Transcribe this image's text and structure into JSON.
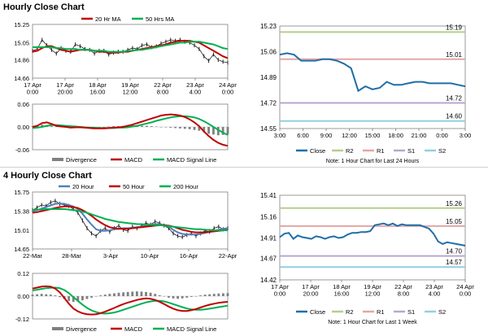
{
  "sections": [
    {
      "title": "Hourly Close Chart"
    },
    {
      "title": "4 Hourly Close Chart"
    }
  ],
  "colors": {
    "ma_short": "#c00000",
    "ma_mid": "#00b050",
    "ma_long": "#00b050",
    "ma_20h_4h": "#4f81bd",
    "price_dark": "#1f1f1f",
    "close": "#1f6ea8",
    "r2": "#b5cf8a",
    "r1": "#e3a6a6",
    "s1": "#b9a6cf",
    "s2": "#8fd0e0",
    "divergence": "#808080",
    "macd": "#c00000",
    "signal": "#00b050"
  },
  "chart_data": [
    {
      "id": "hourly-ma",
      "type": "line",
      "title": "",
      "ylim": [
        14.66,
        15.25
      ],
      "yticks": [
        "15.25",
        "15.05",
        "14.86",
        "14.66"
      ],
      "ytick_values": [
        15.25,
        15.05,
        14.86,
        14.66
      ],
      "xticks": [
        "17 Apr\n0:00",
        "17 Apr\n20:00",
        "18 Apr\n16:00",
        "19 Apr\n12:00",
        "22 Apr\n8:00",
        "23 Apr\n4:00",
        "24 Apr\n0:00"
      ],
      "legend": [
        "20 Hr MA",
        "50 Hrs MA"
      ],
      "price": [
        14.96,
        14.98,
        15.08,
        15.02,
        14.97,
        14.93,
        14.99,
        14.96,
        14.95,
        15.03,
        15.01,
        14.98,
        14.97,
        14.93,
        14.96,
        14.96,
        14.92,
        14.94,
        14.95,
        14.95,
        14.97,
        14.99,
        14.98,
        15.02,
        15.03,
        15.0,
        15.01,
        15.04,
        15.06,
        15.08,
        15.07,
        15.08,
        15.06,
        15.05,
        15.02,
        14.98,
        14.9,
        14.85,
        14.92,
        14.86,
        14.84,
        14.83
      ],
      "series": [
        {
          "name": "20 Hr MA",
          "values": [
            14.95,
            14.96,
            14.99,
            15.01,
            15.01,
            14.99,
            14.97,
            14.96,
            14.95,
            14.96,
            14.97,
            14.97,
            14.97,
            14.96,
            14.95,
            14.95,
            14.94,
            14.94,
            14.94,
            14.95,
            14.95,
            14.96,
            14.97,
            14.98,
            14.99,
            15.0,
            15.01,
            15.02,
            15.03,
            15.05,
            15.06,
            15.07,
            15.07,
            15.07,
            15.06,
            15.05,
            15.02,
            14.99,
            14.96,
            14.93,
            14.9,
            14.88
          ]
        },
        {
          "name": "50 Hrs MA",
          "values": [
            15.0,
            15.0,
            15.0,
            15.0,
            15.0,
            14.99,
            14.99,
            14.98,
            14.98,
            14.98,
            14.97,
            14.97,
            14.97,
            14.96,
            14.96,
            14.96,
            14.95,
            14.95,
            14.95,
            14.95,
            14.96,
            14.96,
            14.97,
            14.97,
            14.98,
            14.99,
            15.0,
            15.01,
            15.02,
            15.03,
            15.04,
            15.05,
            15.05,
            15.06,
            15.06,
            15.06,
            15.05,
            15.04,
            15.03,
            15.01,
            14.99,
            14.98
          ]
        }
      ]
    },
    {
      "id": "hourly-macd",
      "type": "bar",
      "title": "",
      "ylim": [
        -0.06,
        0.06
      ],
      "yticks": [
        "0.06",
        "0.00",
        "-0.06"
      ],
      "ytick_values": [
        0.06,
        0.0,
        -0.06
      ],
      "legend": [
        "Divergence",
        "MACD",
        "MACD Signal Line"
      ],
      "series": [
        {
          "name": "Divergence",
          "values": [
            0.002,
            0.004,
            0.006,
            0.004,
            0.002,
            0.001,
            0.003,
            0.003,
            0.002,
            0.001,
            0.0,
            -0.001,
            -0.002,
            -0.002,
            -0.001,
            0.0,
            0.001,
            0.002,
            0.002,
            0.003,
            0.004,
            0.005,
            0.004,
            0.003,
            0.003,
            0.002,
            0.001,
            0.0,
            -0.001,
            -0.002,
            -0.003,
            -0.004,
            -0.005,
            -0.006,
            -0.008,
            -0.01,
            -0.014,
            -0.018,
            -0.02,
            -0.022,
            -0.021,
            -0.02
          ]
        },
        {
          "name": "MACD",
          "values": [
            0.0,
            0.003,
            0.01,
            0.012,
            0.008,
            0.003,
            0.001,
            0.0,
            -0.002,
            -0.001,
            -0.001,
            -0.002,
            -0.003,
            -0.004,
            -0.004,
            -0.004,
            -0.003,
            -0.002,
            -0.001,
            0.0,
            0.003,
            0.006,
            0.01,
            0.014,
            0.018,
            0.022,
            0.026,
            0.03,
            0.032,
            0.033,
            0.032,
            0.03,
            0.026,
            0.02,
            0.012,
            0.002,
            -0.012,
            -0.024,
            -0.034,
            -0.042,
            -0.047,
            -0.05
          ]
        },
        {
          "name": "MACD Signal Line",
          "values": [
            -0.003,
            -0.002,
            0.0,
            0.003,
            0.005,
            0.005,
            0.004,
            0.003,
            0.002,
            0.001,
            0.0,
            -0.001,
            -0.002,
            -0.002,
            -0.003,
            -0.003,
            -0.003,
            -0.003,
            -0.002,
            -0.002,
            -0.001,
            0.001,
            0.003,
            0.006,
            0.009,
            0.012,
            0.016,
            0.019,
            0.022,
            0.025,
            0.027,
            0.028,
            0.028,
            0.027,
            0.025,
            0.021,
            0.015,
            0.008,
            0.0,
            -0.008,
            -0.015,
            -0.021
          ]
        }
      ]
    },
    {
      "id": "hourly-close",
      "type": "line",
      "title": "",
      "ylim": [
        14.55,
        15.23
      ],
      "yticks": [
        "15.23",
        "15.06",
        "14.89",
        "14.72",
        "14.55"
      ],
      "ytick_values": [
        15.23,
        15.06,
        14.89,
        14.72,
        14.55
      ],
      "xticks": [
        "3:00",
        "6:00",
        "9:00",
        "12:00",
        "15:00",
        "18:00",
        "21:00",
        "0:00",
        "3:00"
      ],
      "levels": [
        {
          "name": "R2",
          "value": 15.19,
          "label": "15.19"
        },
        {
          "name": "R1",
          "value": 15.01,
          "label": "15.01"
        },
        {
          "name": "S1",
          "value": 14.72,
          "label": "14.72"
        },
        {
          "name": "S2",
          "value": 14.6,
          "label": "14.60"
        }
      ],
      "legend": [
        "Close",
        "R2",
        "R1",
        "S1",
        "S2"
      ],
      "note": "Note: 1 Hour Chart for Last 24 Hours",
      "series": [
        {
          "name": "Close",
          "values": [
            15.04,
            15.05,
            15.04,
            15.0,
            15.0,
            15.0,
            15.01,
            15.01,
            15.0,
            14.98,
            14.95,
            14.8,
            14.83,
            14.81,
            14.82,
            14.86,
            14.84,
            14.84,
            14.85,
            14.86,
            14.86,
            14.85,
            14.85,
            14.85,
            14.85,
            14.84,
            14.83
          ]
        }
      ]
    },
    {
      "id": "4h-ma",
      "type": "line",
      "title": "",
      "ylim": [
        14.65,
        15.75
      ],
      "yticks": [
        "15.75",
        "15.38",
        "15.01",
        "14.65"
      ],
      "ytick_values": [
        15.75,
        15.38,
        15.01,
        14.65
      ],
      "xticks": [
        "22-Mar",
        "28-Mar",
        "3-Apr",
        "10-Apr",
        "16-Apr",
        "22-Apr"
      ],
      "legend": [
        "20 Hour",
        "50 Hour",
        "200 Hour"
      ],
      "price": [
        15.4,
        15.45,
        15.5,
        15.48,
        15.55,
        15.58,
        15.52,
        15.5,
        15.48,
        15.42,
        15.35,
        15.2,
        15.05,
        14.95,
        14.9,
        15.0,
        15.05,
        14.98,
        15.05,
        15.1,
        15.02,
        15.0,
        15.08,
        15.05,
        15.1,
        15.15,
        15.12,
        15.18,
        15.15,
        15.1,
        15.05,
        14.95,
        14.9,
        14.88,
        14.92,
        14.95,
        14.9,
        14.95,
        15.0,
        14.98,
        15.05,
        15.08,
        15.03,
        15.05
      ],
      "series": [
        {
          "name": "20 Hour",
          "values": [
            15.38,
            15.4,
            15.43,
            15.46,
            15.49,
            15.52,
            15.53,
            15.52,
            15.5,
            15.47,
            15.42,
            15.33,
            15.22,
            15.12,
            15.03,
            15.0,
            15.0,
            15.01,
            15.03,
            15.04,
            15.05,
            15.05,
            15.06,
            15.07,
            15.08,
            15.1,
            15.12,
            15.13,
            15.13,
            15.11,
            15.08,
            15.02,
            14.97,
            14.94,
            14.93,
            14.93,
            14.93,
            14.94,
            14.96,
            14.98,
            15.0,
            15.02,
            15.04,
            15.05
          ]
        },
        {
          "name": "50 Hour",
          "values": [
            15.35,
            15.36,
            15.38,
            15.4,
            15.42,
            15.44,
            15.46,
            15.47,
            15.47,
            15.46,
            15.44,
            15.4,
            15.35,
            15.29,
            15.22,
            15.16,
            15.11,
            15.07,
            15.05,
            15.04,
            15.04,
            15.04,
            15.05,
            15.06,
            15.07,
            15.08,
            15.09,
            15.1,
            15.11,
            15.11,
            15.1,
            15.08,
            15.05,
            15.02,
            15.0,
            14.98,
            14.97,
            14.97,
            14.97,
            14.98,
            14.99,
            15.0,
            15.01,
            15.02
          ]
        },
        {
          "name": "200 Hour",
          "values": [
            15.4,
            15.41,
            15.41,
            15.42,
            15.42,
            15.42,
            15.42,
            15.42,
            15.41,
            15.4,
            15.39,
            15.37,
            15.35,
            15.32,
            15.29,
            15.26,
            15.23,
            15.21,
            15.19,
            15.17,
            15.16,
            15.15,
            15.14,
            15.13,
            15.13,
            15.12,
            15.12,
            15.11,
            15.11,
            15.1,
            15.09,
            15.08,
            15.07,
            15.06,
            15.05,
            15.04,
            15.03,
            15.03,
            15.02,
            15.02,
            15.01,
            15.01,
            15.01,
            15.01
          ]
        }
      ]
    },
    {
      "id": "4h-macd",
      "type": "bar",
      "title": "",
      "ylim": [
        -0.12,
        0.12
      ],
      "yticks": [
        "0.12",
        "0.00",
        "-0.12"
      ],
      "ytick_values": [
        0.12,
        0.0,
        -0.12
      ],
      "legend": [
        "Divergence",
        "MACD",
        "MACD Signal Line"
      ],
      "series": [
        {
          "name": "Divergence",
          "values": [
            0.008,
            0.01,
            0.012,
            0.01,
            0.008,
            0.004,
            -0.005,
            -0.015,
            -0.025,
            -0.03,
            -0.028,
            -0.022,
            -0.015,
            -0.008,
            -0.002,
            0.004,
            0.008,
            0.012,
            0.015,
            0.018,
            0.02,
            0.022,
            0.024,
            0.025,
            0.024,
            0.022,
            0.018,
            0.012,
            0.005,
            -0.002,
            -0.008,
            -0.012,
            -0.014,
            -0.012,
            -0.008,
            -0.004,
            0.0,
            0.004,
            0.008,
            0.01,
            0.012,
            0.014,
            0.015,
            0.016
          ]
        },
        {
          "name": "MACD",
          "values": [
            0.04,
            0.045,
            0.05,
            0.052,
            0.05,
            0.04,
            0.02,
            -0.01,
            -0.04,
            -0.065,
            -0.08,
            -0.09,
            -0.095,
            -0.097,
            -0.095,
            -0.09,
            -0.082,
            -0.072,
            -0.062,
            -0.052,
            -0.042,
            -0.034,
            -0.027,
            -0.02,
            -0.015,
            -0.012,
            -0.014,
            -0.02,
            -0.03,
            -0.042,
            -0.055,
            -0.066,
            -0.074,
            -0.078,
            -0.078,
            -0.074,
            -0.068,
            -0.06,
            -0.052,
            -0.045,
            -0.04,
            -0.035,
            -0.032,
            -0.03
          ]
        },
        {
          "name": "MACD Signal Line",
          "values": [
            0.03,
            0.034,
            0.038,
            0.042,
            0.044,
            0.045,
            0.042,
            0.032,
            0.016,
            -0.005,
            -0.025,
            -0.045,
            -0.062,
            -0.075,
            -0.084,
            -0.09,
            -0.092,
            -0.09,
            -0.086,
            -0.08,
            -0.072,
            -0.064,
            -0.056,
            -0.048,
            -0.04,
            -0.033,
            -0.028,
            -0.025,
            -0.025,
            -0.028,
            -0.034,
            -0.042,
            -0.05,
            -0.058,
            -0.065,
            -0.07,
            -0.072,
            -0.072,
            -0.07,
            -0.066,
            -0.062,
            -0.058,
            -0.054,
            -0.05
          ]
        }
      ]
    },
    {
      "id": "4h-close",
      "type": "line",
      "title": "",
      "ylim": [
        14.42,
        15.41
      ],
      "yticks": [
        "15.41",
        "15.16",
        "14.91",
        "14.67",
        "14.42"
      ],
      "ytick_values": [
        15.41,
        15.16,
        14.91,
        14.67,
        14.42
      ],
      "xticks": [
        "17 Apr\n0:00",
        "17 Apr\n20:00",
        "18 Apr\n16:00",
        "19 Apr\n12:00",
        "22 Apr\n8:00",
        "23 Apr\n4:00",
        "24 Apr\n0:00"
      ],
      "levels": [
        {
          "name": "R2",
          "value": 15.26,
          "label": "15.26"
        },
        {
          "name": "R1",
          "value": 15.05,
          "label": "15.05"
        },
        {
          "name": "S1",
          "value": 14.7,
          "label": "14.70"
        },
        {
          "name": "S2",
          "value": 14.57,
          "label": "14.57"
        }
      ],
      "legend": [
        "Close",
        "R2",
        "R1",
        "S1",
        "S2"
      ],
      "note": "Note: 1 Hour Chart for Last 1 Week",
      "series": [
        {
          "name": "Close",
          "values": [
            14.92,
            14.96,
            14.97,
            14.9,
            14.94,
            14.92,
            14.91,
            14.9,
            14.93,
            14.92,
            14.9,
            14.92,
            14.93,
            14.91,
            14.92,
            14.95,
            14.97,
            14.97,
            14.98,
            14.98,
            14.99,
            15.06,
            15.07,
            15.08,
            15.06,
            15.08,
            15.05,
            15.07,
            15.06,
            15.06,
            15.06,
            15.06,
            15.04,
            15.02,
            14.96,
            14.87,
            14.84,
            14.86,
            14.85,
            14.84,
            14.83,
            14.82
          ]
        }
      ]
    }
  ]
}
